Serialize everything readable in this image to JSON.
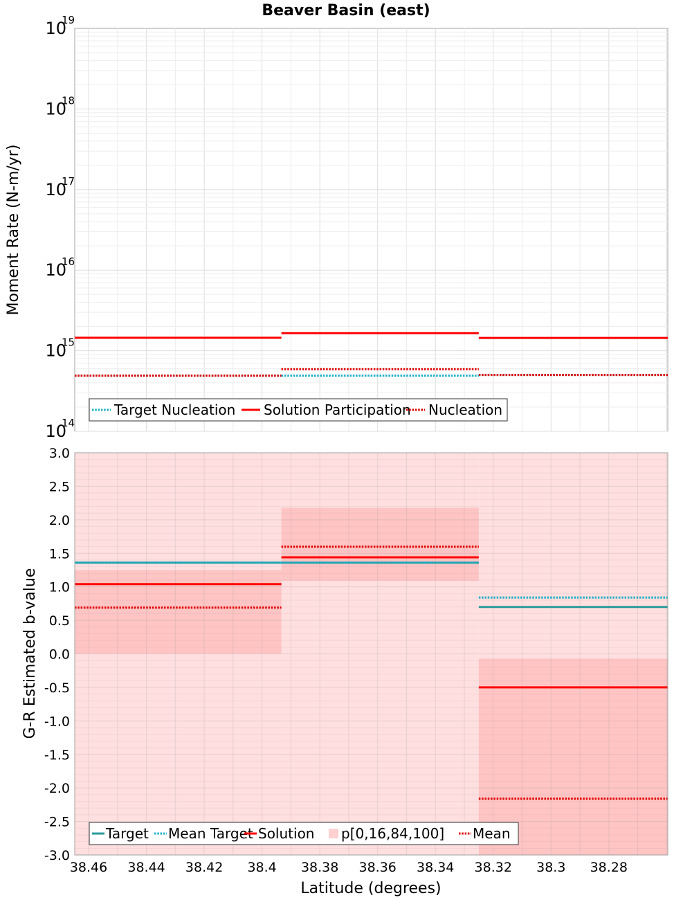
{
  "chart_data": [
    {
      "type": "line",
      "title": "Beaver Basin (east)",
      "xlabel": "",
      "ylabel": "Moment Rate (N-m/yr)",
      "yscale": "log",
      "xlim": [
        38.4648,
        38.2596
      ],
      "ylim": [
        100000000000000.0,
        1e+19
      ],
      "y_ticks": [
        {
          "base": "10",
          "exp": "14",
          "value": 100000000000000.0
        },
        {
          "base": "10",
          "exp": "15",
          "value": 1000000000000000.0
        },
        {
          "base": "10",
          "exp": "16",
          "value": 1e+16
        },
        {
          "base": "10",
          "exp": "17",
          "value": 1e+17
        },
        {
          "base": "10",
          "exp": "18",
          "value": 1e+18
        },
        {
          "base": "10",
          "exp": "19",
          "value": 1e+19
        }
      ],
      "x_ticks": [
        "38.46",
        "38.44",
        "38.42",
        "38.4",
        "38.38",
        "38.36",
        "38.34",
        "38.32",
        "38.3",
        "38.28"
      ],
      "segments": [
        [
          38.4648,
          38.3933
        ],
        [
          38.3933,
          38.325
        ],
        [
          38.325,
          38.2596
        ]
      ],
      "series": [
        {
          "name": "Target Nucleation",
          "color": "#1ab0c8",
          "style": "dotted",
          "values": [
            490000000000000.0,
            490000000000000.0,
            500000000000000.0
          ]
        },
        {
          "name": "Solution Participation",
          "color": "#ff0000",
          "style": "solid",
          "values": [
            1450000000000000.0,
            1650000000000000.0,
            1440000000000000.0
          ]
        },
        {
          "name": "Nucleation",
          "color": "#e00000",
          "style": "dotted",
          "values": [
            490000000000000.0,
            590000000000000.0,
            500000000000000.0
          ]
        }
      ],
      "legend": {
        "placement": "bottom-left",
        "items": [
          "Target Nucleation",
          "Solution Participation",
          "Nucleation"
        ]
      }
    },
    {
      "type": "line",
      "title": "",
      "xlabel": "Latitude (degrees)",
      "ylabel": "G-R Estimated b-value",
      "xlim": [
        38.4648,
        38.2596
      ],
      "ylim": [
        -3.0,
        3.0
      ],
      "y_ticks": [
        "-3.0",
        "-2.5",
        "-2.0",
        "-1.5",
        "-1.0",
        "-0.5",
        "0.0",
        "0.5",
        "1.0",
        "1.5",
        "2.0",
        "2.5",
        "3.0"
      ],
      "x_ticks": [
        "38.46",
        "38.44",
        "38.42",
        "38.4",
        "38.38",
        "38.36",
        "38.34",
        "38.32",
        "38.3",
        "38.28"
      ],
      "segments": [
        [
          38.4648,
          38.3933
        ],
        [
          38.3933,
          38.325
        ],
        [
          38.325,
          38.2596
        ]
      ],
      "series": [
        {
          "name": "Target",
          "color": "#2a9a9c",
          "style": "solid",
          "values": [
            1.36,
            1.36,
            0.7
          ]
        },
        {
          "name": "Mean Target",
          "color": "#1ab0c8",
          "style": "dotted",
          "values": [
            1.36,
            1.36,
            0.84
          ]
        },
        {
          "name": "Solution",
          "color": "#ff0000",
          "style": "solid",
          "values": [
            1.04,
            1.44,
            -0.5
          ]
        },
        {
          "name": "Mean",
          "color": "#e00000",
          "style": "dotted",
          "values": [
            0.69,
            1.6,
            -2.16
          ]
        }
      ],
      "bands": {
        "name": "p[0,16,84,100]",
        "p0_p100": [
          [
            -3.0,
            3.0
          ],
          [
            -3.0,
            3.0
          ],
          [
            -3.0,
            3.0
          ]
        ],
        "p16_p84": [
          [
            0.0,
            1.25
          ],
          [
            1.09,
            2.18
          ],
          [
            -3.0,
            -0.07
          ]
        ]
      },
      "legend": {
        "placement": "bottom-left",
        "items": [
          "Target",
          "Mean Target",
          "Solution",
          "p[0,16,84,100]",
          "Mean"
        ]
      }
    }
  ]
}
